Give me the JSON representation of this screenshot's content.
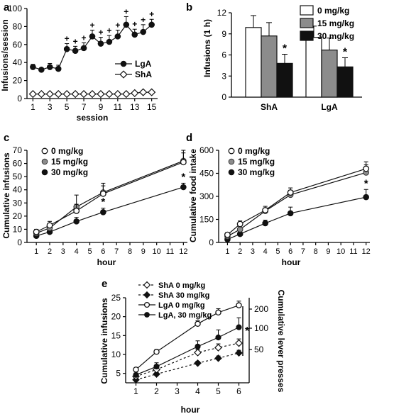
{
  "chart_data": [
    {
      "panel": "a",
      "type": "line",
      "xlabel": "session",
      "ylabel": "Infusions/session",
      "xticks": [
        1,
        3,
        5,
        7,
        9,
        11,
        13,
        15
      ],
      "yticks": [
        0,
        20,
        40,
        60,
        80,
        100
      ],
      "xlim": [
        0.3,
        15.7
      ],
      "ylim": [
        0,
        100
      ],
      "x": [
        1,
        2,
        3,
        4,
        5,
        6,
        7,
        8,
        9,
        10,
        11,
        12,
        13,
        14,
        15
      ],
      "series": [
        {
          "name": "LgA",
          "marker": "filled-circle",
          "values": [
            35,
            32,
            35,
            33,
            55,
            53,
            56,
            69,
            61,
            63,
            69,
            82,
            71,
            74,
            82
          ],
          "errors": [
            3,
            2,
            4,
            4,
            6,
            5,
            6,
            7,
            7,
            7,
            7,
            9,
            6,
            8,
            6
          ]
        },
        {
          "name": "ShA",
          "marker": "open-diamond",
          "values": [
            5,
            5,
            5,
            5,
            5,
            5,
            5,
            5,
            5,
            5,
            5,
            5,
            6,
            7,
            7
          ],
          "errors": [
            0,
            0,
            0,
            0,
            0,
            0,
            0,
            0,
            0,
            0,
            0,
            0,
            0,
            0,
            0
          ]
        }
      ],
      "annotations": [
        {
          "text": "+",
          "x": 5
        },
        {
          "text": "+",
          "x": 6
        },
        {
          "text": "+",
          "x": 7
        },
        {
          "text": "+",
          "x": 8
        },
        {
          "text": "+",
          "x": 9
        },
        {
          "text": "+",
          "x": 10
        },
        {
          "text": "+",
          "x": 11
        },
        {
          "text": "+",
          "x": 12
        },
        {
          "text": "+",
          "x": 13
        },
        {
          "text": "+",
          "x": 14
        },
        {
          "text": "+",
          "x": 15
        }
      ]
    },
    {
      "panel": "b",
      "type": "bar",
      "ylabel": "Infusions (1 h)",
      "categories": [
        "ShA",
        "LgA"
      ],
      "yticks": [
        0,
        3,
        6,
        9,
        12
      ],
      "ylim": [
        0,
        12
      ],
      "legend_position": "top-right",
      "series": [
        {
          "name": "0 mg/kg",
          "color": "#ffffff",
          "values": [
            9.9,
            8.5
          ],
          "errors": [
            1.7,
            1.6
          ]
        },
        {
          "name": "15 mg/kg",
          "color": "#8c8c8c",
          "values": [
            8.7,
            6.7
          ],
          "errors": [
            1.9,
            1.7
          ]
        },
        {
          "name": "30 mg/kg",
          "color": "#111111",
          "values": [
            4.8,
            4.3
          ],
          "errors": [
            1.3,
            1.3
          ]
        }
      ],
      "annotations": [
        {
          "text": "*",
          "category": "ShA"
        },
        {
          "text": "*",
          "category": "LgA"
        }
      ]
    },
    {
      "panel": "c",
      "type": "line",
      "xlabel": "hour",
      "ylabel": "Cumulative infusions",
      "xticks": [
        1,
        2,
        3,
        4,
        5,
        6,
        7,
        8,
        9,
        10,
        11,
        12
      ],
      "yticks": [
        0,
        10,
        20,
        30,
        40,
        50,
        60,
        70
      ],
      "xlim": [
        0.3,
        12.3
      ],
      "ylim": [
        0,
        70
      ],
      "legend_position": "top-left",
      "x": [
        1,
        2,
        4,
        6,
        12
      ],
      "series": [
        {
          "name": "0 mg/kg",
          "marker": "open-circle",
          "values": [
            8,
            13,
            24,
            37,
            61
          ],
          "errors": [
            2,
            3,
            5,
            6,
            7
          ]
        },
        {
          "name": "15 mg/kg",
          "marker": "gray-circle",
          "values": [
            7,
            11,
            27,
            38,
            62
          ],
          "errors": [
            2,
            3,
            9,
            7,
            8
          ]
        },
        {
          "name": "30 mg/kg",
          "marker": "filled-circle",
          "values": [
            5,
            8,
            16,
            23,
            42
          ],
          "errors": [
            1,
            2,
            3,
            3,
            3
          ]
        }
      ],
      "annotations": [
        {
          "text": "*",
          "x": 6
        },
        {
          "text": "*",
          "x": 12
        }
      ]
    },
    {
      "panel": "d",
      "type": "line",
      "xlabel": "hour",
      "ylabel": "Cumulative food intake",
      "xticks": [
        1,
        2,
        3,
        4,
        5,
        6,
        7,
        8,
        9,
        10,
        11,
        12
      ],
      "yticks": [
        0,
        150,
        300,
        450,
        600
      ],
      "xlim": [
        0.3,
        12.3
      ],
      "ylim": [
        0,
        600
      ],
      "legend_position": "top-left",
      "x": [
        1,
        2,
        4,
        6,
        12
      ],
      "series": [
        {
          "name": "0 mg/kg",
          "marker": "open-circle",
          "values": [
            50,
            120,
            210,
            325,
            480
          ],
          "errors": [
            15,
            20,
            25,
            30,
            45
          ]
        },
        {
          "name": "15 mg/kg",
          "marker": "gray-circle",
          "values": [
            40,
            85,
            205,
            310,
            455
          ],
          "errors": [
            15,
            20,
            20,
            30,
            50
          ]
        },
        {
          "name": "30 mg/kg",
          "marker": "filled-circle",
          "values": [
            20,
            55,
            125,
            190,
            295
          ],
          "errors": [
            10,
            15,
            20,
            40,
            50
          ]
        }
      ],
      "annotations": [
        {
          "text": "*",
          "x": 12
        }
      ]
    },
    {
      "panel": "e",
      "type": "line",
      "xlabel": "hour",
      "ylabel": "Cumulative infusions",
      "ylabel_right": "Cumulative lever presses",
      "xticks": [
        1,
        2,
        3,
        4,
        5,
        6
      ],
      "yticks": [
        5,
        10,
        15,
        20,
        25
      ],
      "yticks_right": [
        "50",
        "100",
        "200"
      ],
      "xlim": [
        0.5,
        6.5
      ],
      "ylim": [
        2.5,
        25
      ],
      "legend_position": "top-left",
      "x": [
        1,
        2,
        4,
        5,
        6
      ],
      "series": [
        {
          "name": "ShA 0 mg/kg",
          "marker": "open-diamond",
          "line": "dashed",
          "values": [
            4.2,
            6.0,
            10.5,
            11.8,
            13.0
          ],
          "errors": [
            0.4,
            0.6,
            0.8,
            1.0,
            1.1
          ]
        },
        {
          "name": "ShA 30 mg/kg",
          "marker": "filled-diamond",
          "line": "dashed",
          "values": [
            3.3,
            4.8,
            7.7,
            9.0,
            10.4
          ],
          "errors": [
            0.3,
            0.4,
            0.5,
            0.6,
            0.7
          ]
        },
        {
          "name": "LgA 0 mg/kg",
          "marker": "open-circle",
          "line": "solid",
          "values": [
            6.0,
            10.7,
            18.1,
            21.1,
            23.0
          ],
          "errors": [
            0.5,
            0.6,
            0.8,
            1.0,
            1.1
          ]
        },
        {
          "name": "LgA, 30 mg/kg",
          "marker": "filled-circle",
          "line": "solid",
          "values": [
            4.6,
            6.8,
            12.1,
            14.5,
            17.2
          ],
          "errors": [
            0.5,
            1.0,
            1.5,
            2.0,
            2.5
          ]
        }
      ],
      "annotations": [
        {
          "text": "*"
        }
      ]
    }
  ],
  "panel_labels": [
    "a",
    "b",
    "c",
    "d",
    "e"
  ]
}
